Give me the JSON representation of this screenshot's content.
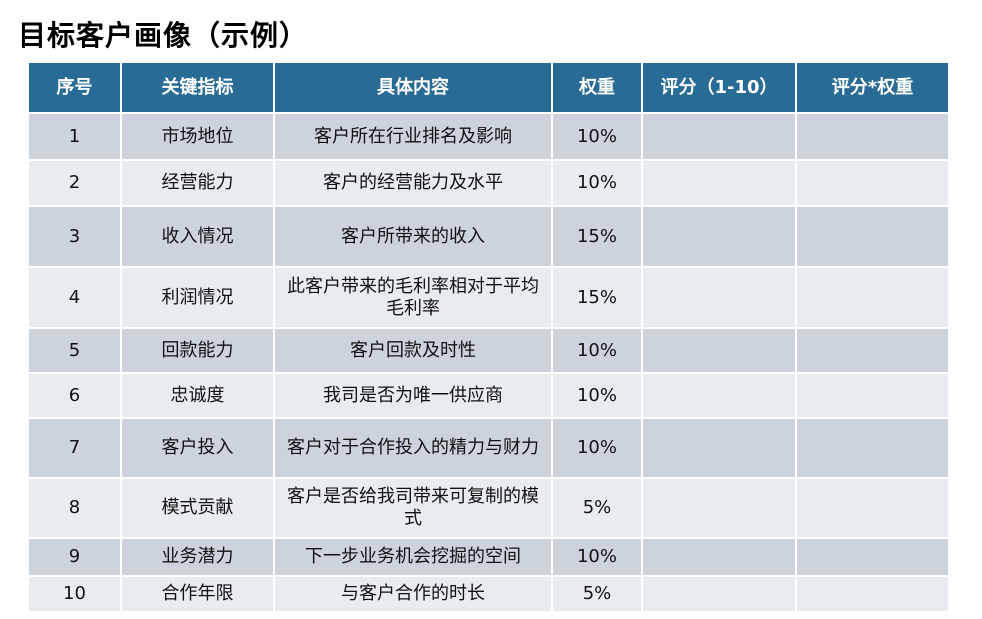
{
  "title": "目标客户画像（示例）",
  "header_color": "#286b94",
  "columns": [
    "序号",
    "关键指标",
    "具体内容",
    "权重",
    "评分（1-10）",
    "评分*权重"
  ],
  "rows": [
    {
      "no": "1",
      "indicator": "市场地位",
      "content": "客户所在行业排名及影响",
      "weight": "10%",
      "score": "",
      "weighted": ""
    },
    {
      "no": "2",
      "indicator": "经营能力",
      "content": "客户的经营能力及水平",
      "weight": "10%",
      "score": "",
      "weighted": ""
    },
    {
      "no": "3",
      "indicator": "收入情况",
      "content": "客户所带来的收入",
      "weight": "15%",
      "score": "",
      "weighted": ""
    },
    {
      "no": "4",
      "indicator": "利润情况",
      "content": "此客户带来的毛利率相对于平均毛利率",
      "weight": "15%",
      "score": "",
      "weighted": ""
    },
    {
      "no": "5",
      "indicator": "回款能力",
      "content": "客户回款及时性",
      "weight": "10%",
      "score": "",
      "weighted": ""
    },
    {
      "no": "6",
      "indicator": "忠诚度",
      "content": "我司是否为唯一供应商",
      "weight": "10%",
      "score": "",
      "weighted": ""
    },
    {
      "no": "7",
      "indicator": "客户投入",
      "content": "客户对于合作投入的精力与财力",
      "weight": "10%",
      "score": "",
      "weighted": ""
    },
    {
      "no": "8",
      "indicator": "模式贡献",
      "content": "客户是否给我司带来可复制的模式",
      "weight": "5%",
      "score": "",
      "weighted": ""
    },
    {
      "no": "9",
      "indicator": "业务潜力",
      "content": "下一步业务机会挖掘的空间",
      "weight": "10%",
      "score": "",
      "weighted": ""
    },
    {
      "no": "10",
      "indicator": "合作年限",
      "content": "与客户合作的时长",
      "weight": "5%",
      "score": "",
      "weighted": ""
    }
  ]
}
